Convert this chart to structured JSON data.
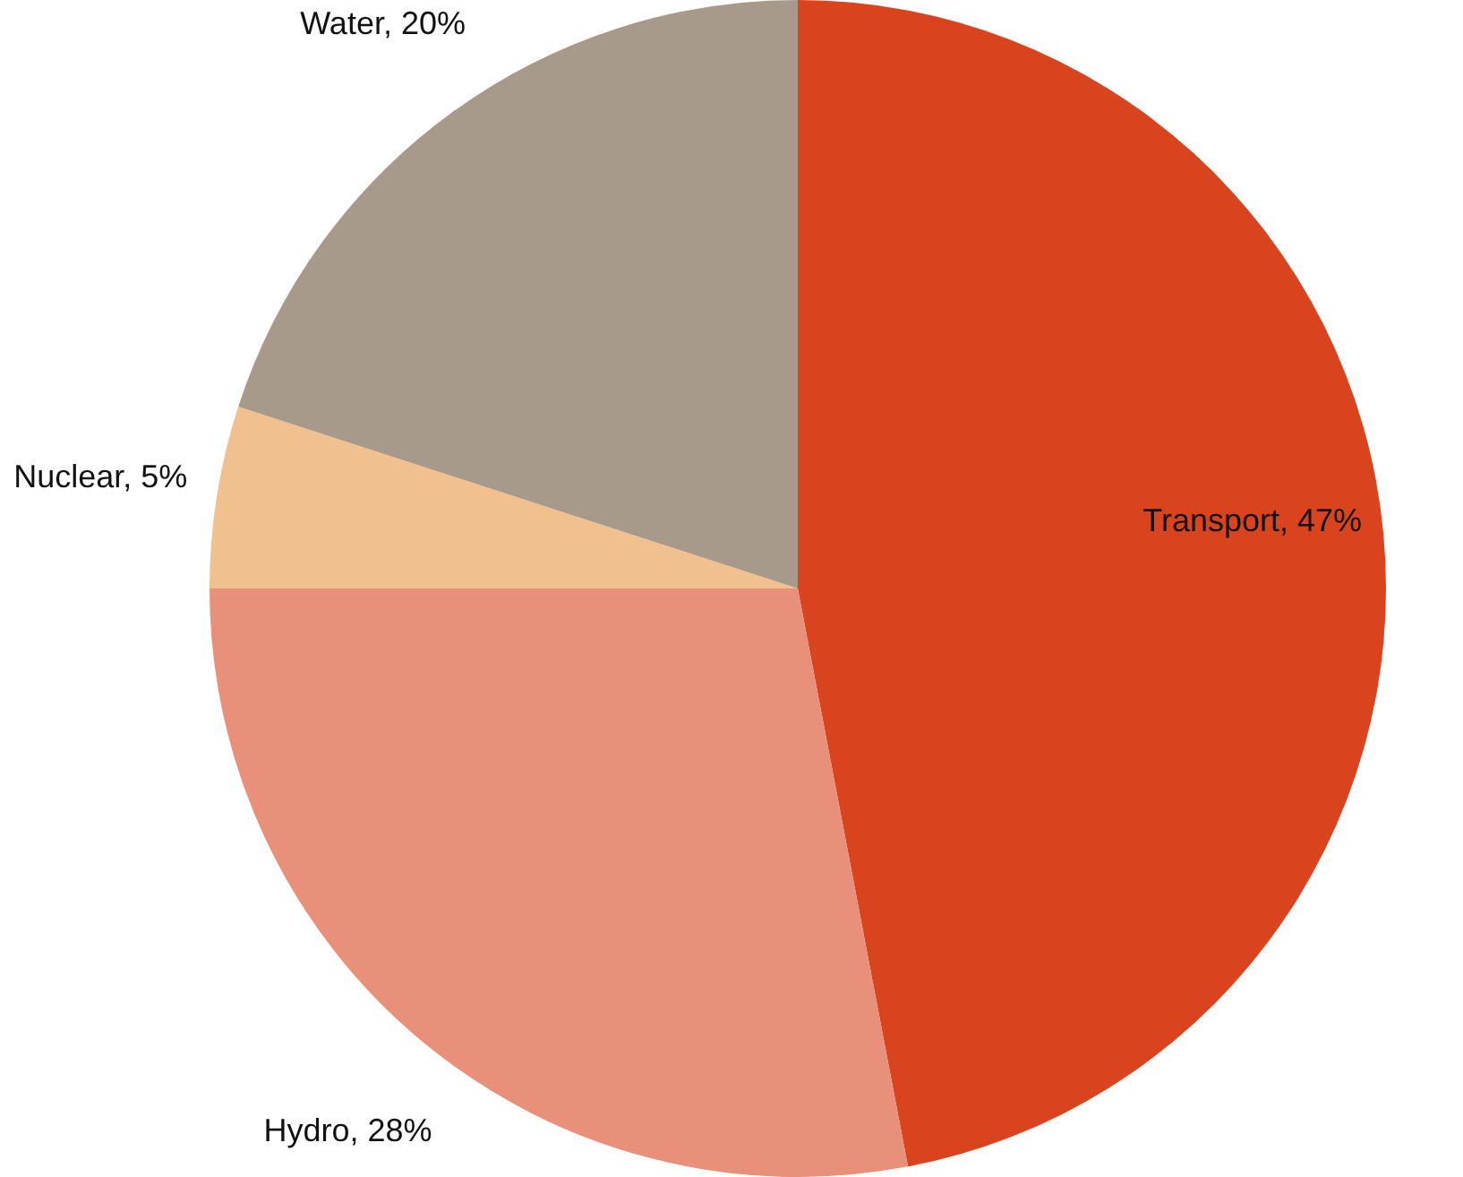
{
  "chart_data": {
    "type": "pie",
    "categories": [
      "Transport",
      "Hydro",
      "Nuclear",
      "Water"
    ],
    "values": [
      47,
      28,
      5,
      20
    ],
    "value_labels": [
      "47%",
      "28%",
      "5%",
      "20%"
    ],
    "colors": [
      "#d9441f",
      "#e8907a",
      "#f0c08f",
      "#a89a8a"
    ],
    "legend": false
  }
}
